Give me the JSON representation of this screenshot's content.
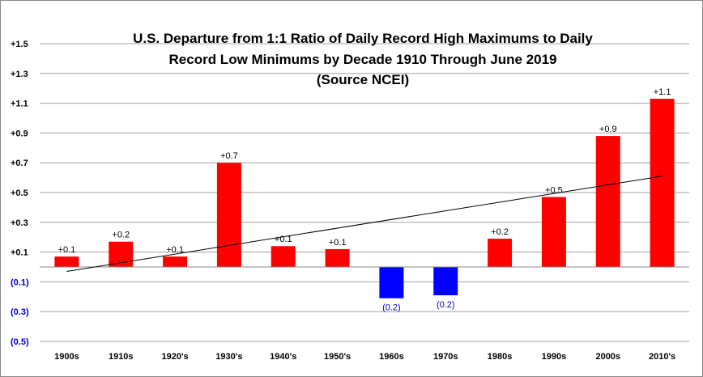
{
  "chart_data": {
    "type": "bar",
    "title_lines": [
      "U.S. Departure  from 1:1 Ratio of Daily Record High Maximums to Daily",
      "Record Low Minimums  by Decade 1910 Through  June 2019",
      "(Source NCEI)"
    ],
    "categories": [
      "1900s",
      "1910s",
      "1920's",
      "1930's",
      "1940's",
      "1950's",
      "1960s",
      "1970s",
      "1980s",
      "1990s",
      "2000s",
      "2010's"
    ],
    "values": [
      0.07,
      0.17,
      0.07,
      0.7,
      0.14,
      0.12,
      -0.21,
      -0.19,
      0.19,
      0.47,
      0.88,
      1.13
    ],
    "data_labels": [
      "+0.1",
      "+0.2",
      "+0.1",
      "+0.7",
      "+0.1",
      "+0.1",
      "(0.2)",
      "(0.2)",
      "+0.2",
      "+0.5",
      "+0.9",
      "+1.1"
    ],
    "ylim": [
      -0.5,
      1.5
    ],
    "yticks": [
      {
        "value": 1.5,
        "label": "+1.5"
      },
      {
        "value": 1.3,
        "label": "+1.3"
      },
      {
        "value": 1.1,
        "label": "+1.1"
      },
      {
        "value": 0.9,
        "label": "+0.9"
      },
      {
        "value": 0.7,
        "label": "+0.7"
      },
      {
        "value": 0.5,
        "label": "+0.5"
      },
      {
        "value": 0.3,
        "label": "+0.3"
      },
      {
        "value": 0.1,
        "label": "+0.1"
      },
      {
        "value": -0.1,
        "label": "(0.1)"
      },
      {
        "value": -0.3,
        "label": "(0.3)"
      },
      {
        "value": -0.5,
        "label": "(0.5)"
      }
    ],
    "trendline": {
      "start": -0.03,
      "end": 0.61
    },
    "grid": true,
    "colors": {
      "positive": "#ff0000",
      "negative": "#0000ff",
      "positive_tick": "#000000",
      "negative_tick": "#0000cc",
      "grid": "#a0a0a0",
      "trend": "#000000"
    }
  }
}
